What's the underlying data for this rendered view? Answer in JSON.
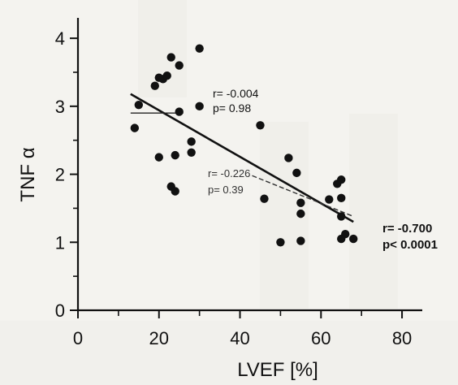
{
  "chart_data": {
    "type": "scatter",
    "title": "",
    "xlabel": "LVEF [%]",
    "ylabel": "TNF α",
    "xlim": [
      0,
      85
    ],
    "ylim": [
      0,
      4.3
    ],
    "xticks": [
      "0",
      "20",
      "40",
      "60",
      "80"
    ],
    "yticks": [
      "0",
      "1",
      "2",
      "3",
      "4"
    ],
    "grid": false,
    "points": [
      {
        "x": 14,
        "y": 2.68
      },
      {
        "x": 15,
        "y": 3.02
      },
      {
        "x": 19,
        "y": 3.3
      },
      {
        "x": 20,
        "y": 3.42
      },
      {
        "x": 21,
        "y": 3.4
      },
      {
        "x": 20,
        "y": 2.25
      },
      {
        "x": 22,
        "y": 3.45
      },
      {
        "x": 23,
        "y": 3.72
      },
      {
        "x": 25,
        "y": 3.6
      },
      {
        "x": 25,
        "y": 2.92
      },
      {
        "x": 24,
        "y": 2.28
      },
      {
        "x": 23,
        "y": 1.82
      },
      {
        "x": 24,
        "y": 1.75
      },
      {
        "x": 28,
        "y": 2.48
      },
      {
        "x": 28,
        "y": 2.32
      },
      {
        "x": 30,
        "y": 3.85
      },
      {
        "x": 30,
        "y": 3.0
      },
      {
        "x": 45,
        "y": 2.72
      },
      {
        "x": 46,
        "y": 1.64
      },
      {
        "x": 52,
        "y": 2.24
      },
      {
        "x": 54,
        "y": 2.02
      },
      {
        "x": 55,
        "y": 1.58
      },
      {
        "x": 55,
        "y": 1.42
      },
      {
        "x": 55,
        "y": 1.02
      },
      {
        "x": 50,
        "y": 1.0
      },
      {
        "x": 62,
        "y": 1.63
      },
      {
        "x": 64,
        "y": 1.86
      },
      {
        "x": 65,
        "y": 1.92
      },
      {
        "x": 65,
        "y": 1.65
      },
      {
        "x": 65,
        "y": 1.38
      },
      {
        "x": 66,
        "y": 1.12
      },
      {
        "x": 65,
        "y": 1.05
      },
      {
        "x": 68,
        "y": 1.05
      }
    ],
    "lines": [
      {
        "kind": "regression-all",
        "x": [
          13,
          68
        ],
        "y": [
          3.18,
          1.3
        ]
      },
      {
        "kind": "regression-low-lvef",
        "x": [
          13,
          26
        ],
        "y": [
          2.9,
          2.9
        ]
      },
      {
        "kind": "regression-high-lvef",
        "x": [
          43,
          68
        ],
        "y": [
          1.98,
          1.38
        ]
      }
    ],
    "annotations": {
      "all": {
        "r": "r= -0.700",
        "p": "p< 0.0001"
      },
      "low": {
        "r": "r= -0.004",
        "p": "p= 0.98"
      },
      "mid": {
        "r": "r= -0.226",
        "p": "p= 0.39"
      }
    }
  }
}
